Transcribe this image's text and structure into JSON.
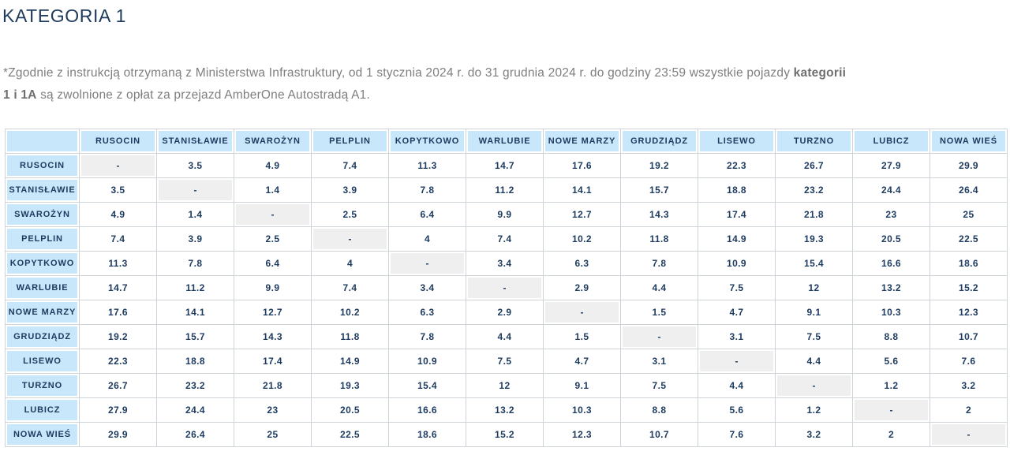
{
  "title": "KATEGORIA 1",
  "note": {
    "line1_text": "*Zgodnie z instrukcją otrzymaną z Ministerstwa Infrastruktury, od 1 stycznia 2024 r.  do 31 grudnia 2024 r. do godziny 23:59 wszystkie pojazdy ",
    "line1_bold": "kategorii",
    "line2_bold": "1 i 1A",
    "line2_text": " są zwolnione z opłat za przejazd AmberOne Autostradą A1."
  },
  "colors": {
    "title_navy": "#1e3a5c",
    "cell_text_navy": "#1d3a5f",
    "header_blue": "#c9e7fb",
    "diagonal_gray": "#efefef",
    "grid_gray": "#cfd4d9",
    "note_gray": "#7e7e7e"
  },
  "chart_data": {
    "type": "table",
    "title": "KATEGORIA 1 — opłaty za przejazd AmberOne Autostradą A1 (macierz między stacjami)",
    "corner_label": "",
    "columns": [
      "RUSOCIN",
      "STANISŁAWIE",
      "SWAROŻYN",
      "PELPLIN",
      "KOPYTKOWO",
      "WARLUBIE",
      "NOWE MARZY",
      "GRUDZIĄDZ",
      "LISEWO",
      "TURZNO",
      "LUBICZ",
      "NOWA WIEŚ"
    ],
    "rows": [
      {
        "label": "RUSOCIN",
        "values": [
          "-",
          "3.5",
          "4.9",
          "7.4",
          "11.3",
          "14.7",
          "17.6",
          "19.2",
          "22.3",
          "26.7",
          "27.9",
          "29.9"
        ]
      },
      {
        "label": "STANISŁAWIE",
        "values": [
          "3.5",
          "-",
          "1.4",
          "3.9",
          "7.8",
          "11.2",
          "14.1",
          "15.7",
          "18.8",
          "23.2",
          "24.4",
          "26.4"
        ]
      },
      {
        "label": "SWAROŻYN",
        "values": [
          "4.9",
          "1.4",
          "-",
          "2.5",
          "6.4",
          "9.9",
          "12.7",
          "14.3",
          "17.4",
          "21.8",
          "23",
          "25"
        ]
      },
      {
        "label": "PELPLIN",
        "values": [
          "7.4",
          "3.9",
          "2.5",
          "-",
          "4",
          "7.4",
          "10.2",
          "11.8",
          "14.9",
          "19.3",
          "20.5",
          "22.5"
        ]
      },
      {
        "label": "KOPYTKOWO",
        "values": [
          "11.3",
          "7.8",
          "6.4",
          "4",
          "-",
          "3.4",
          "6.3",
          "7.8",
          "10.9",
          "15.4",
          "16.6",
          "18.6"
        ]
      },
      {
        "label": "WARLUBIE",
        "values": [
          "14.7",
          "11.2",
          "9.9",
          "7.4",
          "3.4",
          "-",
          "2.9",
          "4.4",
          "7.5",
          "12",
          "13.2",
          "15.2"
        ]
      },
      {
        "label": "NOWE MARZY",
        "values": [
          "17.6",
          "14.1",
          "12.7",
          "10.2",
          "6.3",
          "2.9",
          "-",
          "1.5",
          "4.7",
          "9.1",
          "10.3",
          "12.3"
        ]
      },
      {
        "label": "GRUDZIĄDZ",
        "values": [
          "19.2",
          "15.7",
          "14.3",
          "11.8",
          "7.8",
          "4.4",
          "1.5",
          "-",
          "3.1",
          "7.5",
          "8.8",
          "10.7"
        ]
      },
      {
        "label": "LISEWO",
        "values": [
          "22.3",
          "18.8",
          "17.4",
          "14.9",
          "10.9",
          "7.5",
          "4.7",
          "3.1",
          "-",
          "4.4",
          "5.6",
          "7.6"
        ]
      },
      {
        "label": "TURZNO",
        "values": [
          "26.7",
          "23.2",
          "21.8",
          "19.3",
          "15.4",
          "12",
          "9.1",
          "7.5",
          "4.4",
          "-",
          "1.2",
          "3.2"
        ]
      },
      {
        "label": "LUBICZ",
        "values": [
          "27.9",
          "24.4",
          "23",
          "20.5",
          "16.6",
          "13.2",
          "10.3",
          "8.8",
          "5.6",
          "1.2",
          "-",
          "2"
        ]
      },
      {
        "label": "NOWA WIEŚ",
        "values": [
          "29.9",
          "26.4",
          "25",
          "22.5",
          "18.6",
          "15.2",
          "12.3",
          "10.7",
          "7.6",
          "3.2",
          "2",
          "-"
        ]
      }
    ]
  }
}
